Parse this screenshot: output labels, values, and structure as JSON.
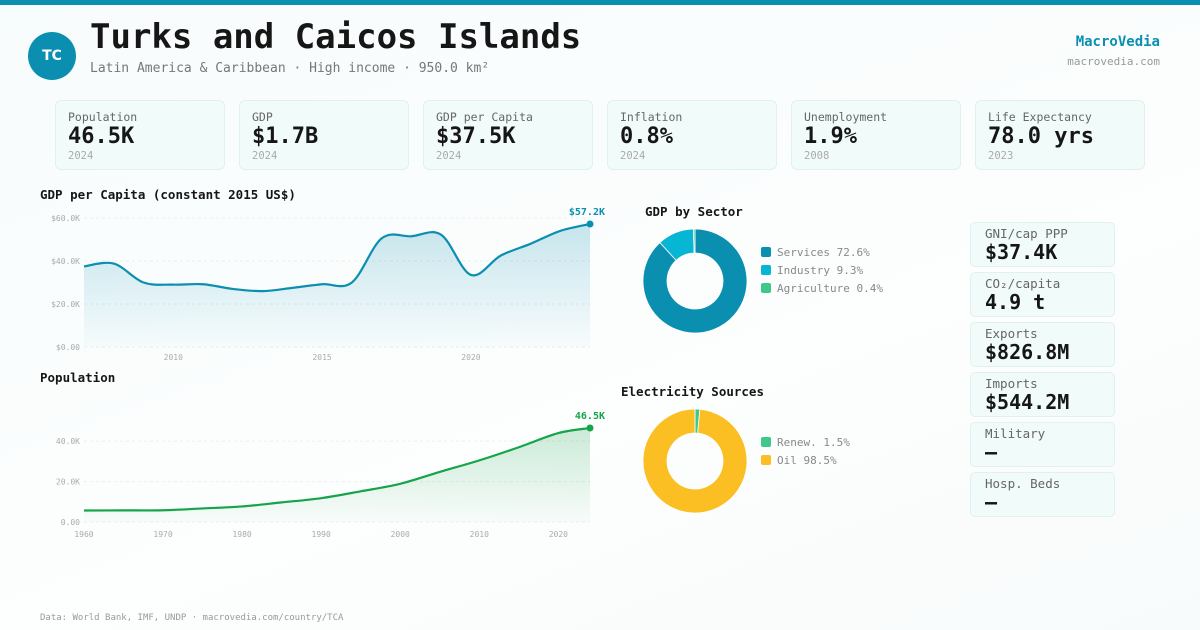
{
  "header": {
    "avatar": "TC",
    "title": "Turks and Caicos Islands",
    "subtitle": "Latin America & Caribbean · High income · 950.0 km²",
    "brand": "MacroVedia",
    "brand_url": "macrovedia.com"
  },
  "kpis": [
    {
      "label": "Population",
      "value": "46.5K",
      "year": "2024"
    },
    {
      "label": "GDP",
      "value": "$1.7B",
      "year": "2024"
    },
    {
      "label": "GDP per Capita",
      "value": "$37.5K",
      "year": "2024"
    },
    {
      "label": "Inflation",
      "value": "0.8%",
      "year": "2024"
    },
    {
      "label": "Unemployment",
      "value": "1.9%",
      "year": "2008"
    },
    {
      "label": "Life Expectancy",
      "value": "78.0 yrs",
      "year": "2023"
    }
  ],
  "side_stats": [
    {
      "label": "GNI/cap PPP",
      "value": "$37.4K"
    },
    {
      "label": "CO₂/capita",
      "value": "4.9 t"
    },
    {
      "label": "Exports",
      "value": "$826.8M"
    },
    {
      "label": "Imports",
      "value": "$544.2M"
    },
    {
      "label": "Military",
      "value": "—"
    },
    {
      "label": "Hosp. Beds",
      "value": "—"
    }
  ],
  "colors": {
    "accent": "#0b8fb1",
    "population": "#16a34a",
    "industry": "#06b6d4",
    "agriculture": "#3ec98a",
    "oil": "#fbbf24"
  },
  "chart_data": [
    {
      "type": "area",
      "title": "GDP per Capita (constant 2015 US$)",
      "end_label": "$57.2K",
      "x": [
        2007,
        2008,
        2009,
        2010,
        2011,
        2012,
        2013,
        2014,
        2015,
        2016,
        2017,
        2018,
        2019,
        2020,
        2021,
        2022,
        2023,
        2024
      ],
      "y": [
        37500,
        38800,
        30000,
        29000,
        29200,
        27000,
        26000,
        27500,
        29200,
        30000,
        50500,
        51500,
        52200,
        33500,
        42500,
        48000,
        54000,
        57200
      ],
      "ylim": [
        0,
        60000
      ],
      "yticks": [
        "$0.00",
        "$20.0K",
        "$40.0K",
        "$60.0K"
      ],
      "ytick_values": [
        0,
        20000,
        40000,
        60000
      ],
      "xticks": [
        "2010",
        "2015",
        "2020"
      ],
      "xtick_values": [
        2010,
        2015,
        2020
      ],
      "xlim": [
        2007,
        2024
      ],
      "grid": true,
      "color": "#0b8fb1"
    },
    {
      "type": "area",
      "title": "Population",
      "end_label": "46.5K",
      "x": [
        1960,
        1965,
        1970,
        1975,
        1980,
        1985,
        1990,
        1995,
        2000,
        2005,
        2010,
        2015,
        2020,
        2024
      ],
      "y": [
        5700,
        5750,
        5800,
        6700,
        7700,
        9700,
        11800,
        15200,
        18900,
        24800,
        30500,
        37000,
        44000,
        46500
      ],
      "ylim": [
        0,
        48000
      ],
      "yticks": [
        "0.00",
        "20.0K",
        "40.0K"
      ],
      "ytick_values": [
        0,
        20000,
        40000
      ],
      "xticks": [
        "1960",
        "1970",
        "1980",
        "1990",
        "2000",
        "2010",
        "2020"
      ],
      "xtick_values": [
        1960,
        1970,
        1980,
        1990,
        2000,
        2010,
        2020
      ],
      "xlim": [
        1960,
        2024
      ],
      "grid": true,
      "color": "#16a34a"
    },
    {
      "type": "pie",
      "title": "GDP by Sector",
      "slices": [
        {
          "label": "Services 72.6%",
          "value": 72.6,
          "color": "#0b8fb1"
        },
        {
          "label": "Industry 9.3%",
          "value": 9.3,
          "color": "#06b6d4"
        },
        {
          "label": "Agriculture 0.4%",
          "value": 0.4,
          "color": "#3ec98a"
        }
      ]
    },
    {
      "type": "pie",
      "title": "Electricity Sources",
      "slices": [
        {
          "label": "Renew. 1.5%",
          "value": 1.5,
          "color": "#3ec98a"
        },
        {
          "label": "Oil 98.5%",
          "value": 98.5,
          "color": "#fbbf24"
        }
      ]
    }
  ],
  "footer": "Data: World Bank, IMF, UNDP · macrovedia.com/country/TCA"
}
